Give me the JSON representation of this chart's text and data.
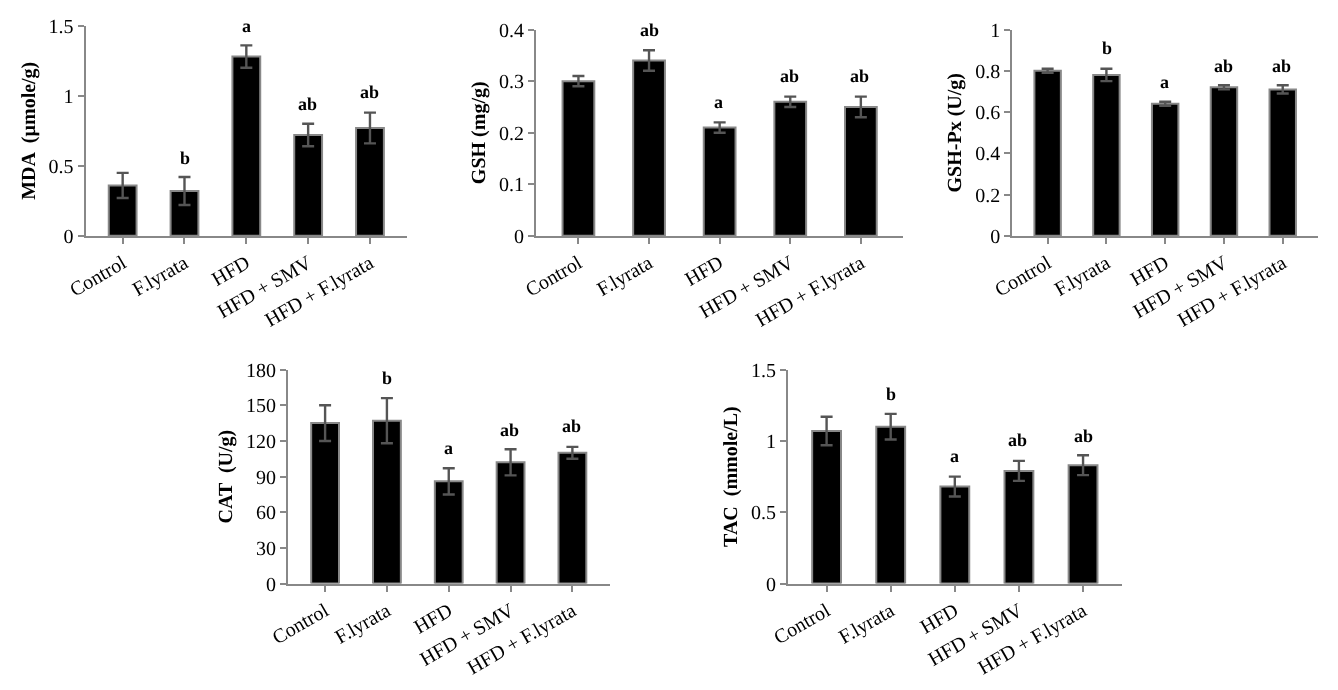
{
  "chart_data": [
    {
      "type": "bar",
      "ylabel": "MDA  (µmole/g)",
      "categories": [
        "Control",
        "F.lyrata",
        "HFD",
        "HFD + SMV",
        "HFD + F.lyrata"
      ],
      "values": [
        0.36,
        0.32,
        1.28,
        0.72,
        0.77
      ],
      "errors": [
        0.09,
        0.1,
        0.08,
        0.08,
        0.11
      ],
      "value_labels": [
        null,
        "b",
        "a",
        "ab",
        "ab"
      ],
      "color": "#000000",
      "ylim": [
        0,
        1.5
      ],
      "yticks": [
        0,
        0.5,
        1,
        1.5
      ]
    },
    {
      "type": "bar",
      "ylabel": "GSH (mg/g)",
      "categories": [
        "Control",
        "F.lyrata",
        "HFD",
        "HFD + SMV",
        "HFD + F.lyrata"
      ],
      "values": [
        0.3,
        0.34,
        0.21,
        0.26,
        0.25
      ],
      "errors": [
        0.01,
        0.02,
        0.01,
        0.01,
        0.02
      ],
      "value_labels": [
        null,
        "ab",
        "a",
        "ab",
        "ab"
      ],
      "color": "#000000",
      "ylim": [
        0,
        0.4
      ],
      "yticks": [
        0,
        0.1,
        0.2,
        0.3,
        0.4
      ]
    },
    {
      "type": "bar",
      "ylabel": "GSH-Px (U/g)",
      "categories": [
        "Control",
        "F.lyrata",
        "HFD",
        "HFD + SMV",
        "HFD + F.lyrata"
      ],
      "values": [
        0.8,
        0.78,
        0.64,
        0.72,
        0.71
      ],
      "errors": [
        0.01,
        0.03,
        0.01,
        0.01,
        0.02
      ],
      "value_labels": [
        null,
        "b",
        "a",
        "ab",
        "ab"
      ],
      "color": "#000000",
      "ylim": [
        0,
        1
      ],
      "yticks": [
        0,
        0.2,
        0.4,
        0.6,
        0.8,
        1
      ]
    },
    {
      "type": "bar",
      "ylabel": "CAT  (U/g)",
      "categories": [
        "Control",
        "F.lyrata",
        "HFD",
        "HFD + SMV",
        "HFD + F.lyrata"
      ],
      "values": [
        135,
        137,
        86,
        102,
        110
      ],
      "errors": [
        15,
        19,
        11,
        11,
        5
      ],
      "value_labels": [
        null,
        "b",
        "a",
        "ab",
        "ab"
      ],
      "color": "#000000",
      "ylim": [
        0,
        180
      ],
      "yticks": [
        0,
        30,
        60,
        90,
        120,
        150,
        180
      ]
    },
    {
      "type": "bar",
      "ylabel": "TAC  (mmole/L)",
      "categories": [
        "Control",
        "F.lyrata",
        "HFD",
        "HFD + SMV",
        "HFD + F.lyrata"
      ],
      "values": [
        1.07,
        1.1,
        0.68,
        0.79,
        0.83
      ],
      "errors": [
        0.1,
        0.09,
        0.07,
        0.07,
        0.07
      ],
      "value_labels": [
        null,
        "b",
        "a",
        "ab",
        "ab"
      ],
      "color": "#000000",
      "ylim": [
        0,
        1.5
      ],
      "yticks": [
        0,
        0.5,
        1,
        1.5
      ]
    }
  ]
}
